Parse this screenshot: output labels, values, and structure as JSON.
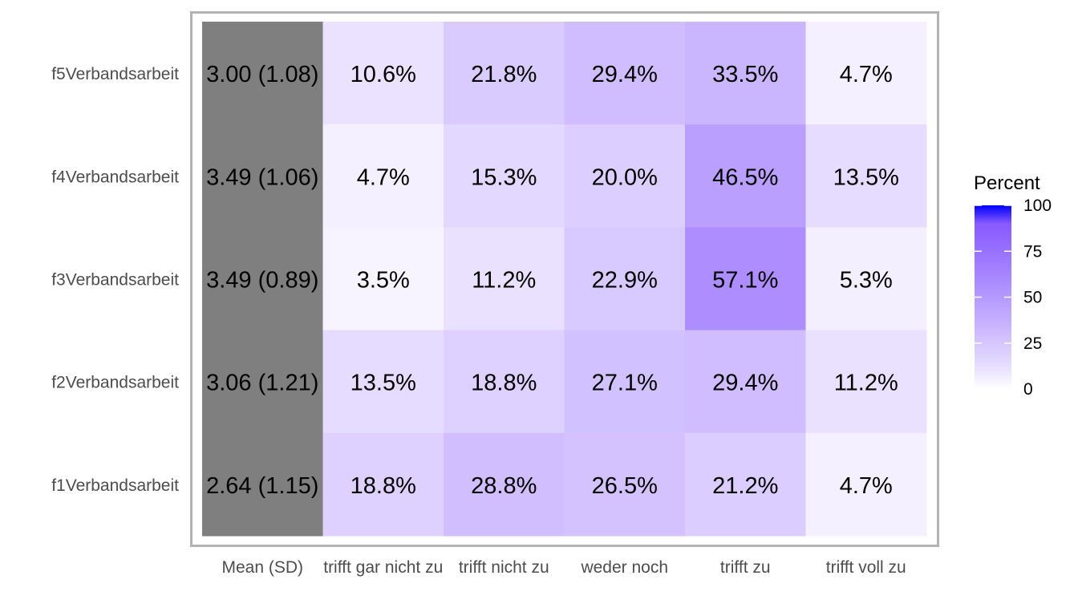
{
  "chart_data": {
    "type": "heatmap",
    "rows": [
      "f5Verbandsarbeit",
      "f4Verbandsarbeit",
      "f3Verbandsarbeit",
      "f2Verbandsarbeit",
      "f1Verbandsarbeit"
    ],
    "columns": [
      "Mean (SD)",
      "trifft gar nicht zu",
      "trifft nicht zu",
      "weder noch",
      "trifft zu",
      "trifft voll zu"
    ],
    "mean_sd_labels": [
      "3.00 (1.08)",
      "3.49 (1.06)",
      "3.49 (0.89)",
      "3.06 (1.21)",
      "2.64 (1.15)"
    ],
    "values": [
      [
        10.6,
        21.8,
        29.4,
        33.5,
        4.7
      ],
      [
        4.7,
        15.3,
        20.0,
        46.5,
        13.5
      ],
      [
        3.5,
        11.2,
        22.9,
        57.1,
        5.3
      ],
      [
        13.5,
        18.8,
        27.1,
        29.4,
        11.2
      ],
      [
        18.8,
        28.8,
        26.5,
        21.2,
        4.7
      ]
    ],
    "legend": {
      "title": "Percent",
      "range": [
        0,
        100
      ],
      "ticks": [
        0,
        25,
        50,
        75,
        100
      ],
      "low_color": "#ffffff",
      "high_color": "#0000ff",
      "placement": "right"
    },
    "mean_column_color": "#7f7f7f",
    "panel_border_color": "#b3b3b3"
  }
}
